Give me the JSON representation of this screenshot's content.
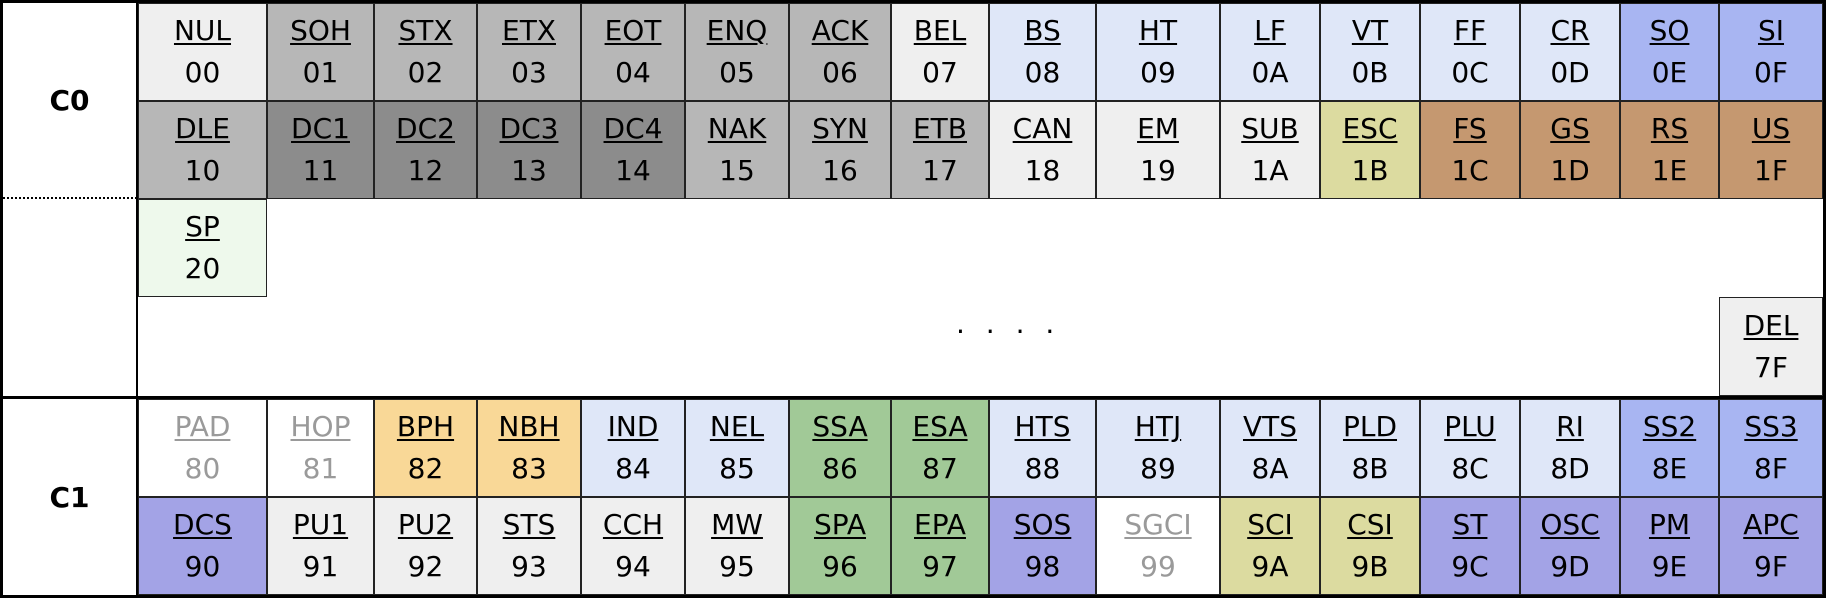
{
  "row_labels": {
    "c0": "C0",
    "c1": "C1"
  },
  "ellipsis": ". . . .",
  "colors": {
    "white": "#ffffff",
    "light_grey": "#efefef",
    "grey": "#b7b7b7",
    "dark_grey": "#8c8c8c",
    "light_blue": "#dfe7f8",
    "blue": "#a8b5f2",
    "purple": "#a3a3e6",
    "khaki": "#dcdba0",
    "tan": "#c59870",
    "orange": "#f9d897",
    "green": "#a1c997",
    "pale_green": "#eef9ec"
  },
  "c0_rows": [
    [
      {
        "abbr": "NUL",
        "code": "00",
        "color": "light_grey"
      },
      {
        "abbr": "SOH",
        "code": "01",
        "color": "grey"
      },
      {
        "abbr": "STX",
        "code": "02",
        "color": "grey"
      },
      {
        "abbr": "ETX",
        "code": "03",
        "color": "grey"
      },
      {
        "abbr": "EOT",
        "code": "04",
        "color": "grey"
      },
      {
        "abbr": "ENQ",
        "code": "05",
        "color": "grey"
      },
      {
        "abbr": "ACK",
        "code": "06",
        "color": "grey"
      },
      {
        "abbr": "BEL",
        "code": "07",
        "color": "light_grey"
      },
      {
        "abbr": "BS",
        "code": "08",
        "color": "light_blue"
      },
      {
        "abbr": "HT",
        "code": "09",
        "color": "light_blue"
      },
      {
        "abbr": "LF",
        "code": "0A",
        "color": "light_blue"
      },
      {
        "abbr": "VT",
        "code": "0B",
        "color": "light_blue"
      },
      {
        "abbr": "FF",
        "code": "0C",
        "color": "light_blue"
      },
      {
        "abbr": "CR",
        "code": "0D",
        "color": "light_blue"
      },
      {
        "abbr": "SO",
        "code": "0E",
        "color": "blue"
      },
      {
        "abbr": "SI",
        "code": "0F",
        "color": "blue"
      }
    ],
    [
      {
        "abbr": "DLE",
        "code": "10",
        "color": "grey"
      },
      {
        "abbr": "DC1",
        "code": "11",
        "color": "dark_grey"
      },
      {
        "abbr": "DC2",
        "code": "12",
        "color": "dark_grey"
      },
      {
        "abbr": "DC3",
        "code": "13",
        "color": "dark_grey"
      },
      {
        "abbr": "DC4",
        "code": "14",
        "color": "dark_grey"
      },
      {
        "abbr": "NAK",
        "code": "15",
        "color": "grey"
      },
      {
        "abbr": "SYN",
        "code": "16",
        "color": "grey"
      },
      {
        "abbr": "ETB",
        "code": "17",
        "color": "grey"
      },
      {
        "abbr": "CAN",
        "code": "18",
        "color": "light_grey"
      },
      {
        "abbr": "EM",
        "code": "19",
        "color": "light_grey"
      },
      {
        "abbr": "SUB",
        "code": "1A",
        "color": "light_grey"
      },
      {
        "abbr": "ESC",
        "code": "1B",
        "color": "khaki"
      },
      {
        "abbr": "FS",
        "code": "1C",
        "color": "tan"
      },
      {
        "abbr": "GS",
        "code": "1D",
        "color": "tan"
      },
      {
        "abbr": "RS",
        "code": "1E",
        "color": "tan"
      },
      {
        "abbr": "US",
        "code": "1F",
        "color": "tan"
      }
    ]
  ],
  "sp": {
    "abbr": "SP",
    "code": "20",
    "color": "pale_green"
  },
  "del": {
    "abbr": "DEL",
    "code": "7F",
    "color": "light_grey"
  },
  "c1_rows": [
    [
      {
        "abbr": "PAD",
        "code": "80",
        "color": "white",
        "muted": true
      },
      {
        "abbr": "HOP",
        "code": "81",
        "color": "white",
        "muted": true
      },
      {
        "abbr": "BPH",
        "code": "82",
        "color": "orange"
      },
      {
        "abbr": "NBH",
        "code": "83",
        "color": "orange"
      },
      {
        "abbr": "IND",
        "code": "84",
        "color": "light_blue"
      },
      {
        "abbr": "NEL",
        "code": "85",
        "color": "light_blue"
      },
      {
        "abbr": "SSA",
        "code": "86",
        "color": "green"
      },
      {
        "abbr": "ESA",
        "code": "87",
        "color": "green"
      },
      {
        "abbr": "HTS",
        "code": "88",
        "color": "light_blue"
      },
      {
        "abbr": "HTJ",
        "code": "89",
        "color": "light_blue"
      },
      {
        "abbr": "VTS",
        "code": "8A",
        "color": "light_blue"
      },
      {
        "abbr": "PLD",
        "code": "8B",
        "color": "light_blue"
      },
      {
        "abbr": "PLU",
        "code": "8C",
        "color": "light_blue"
      },
      {
        "abbr": "RI",
        "code": "8D",
        "color": "light_blue"
      },
      {
        "abbr": "SS2",
        "code": "8E",
        "color": "blue"
      },
      {
        "abbr": "SS3",
        "code": "8F",
        "color": "blue"
      }
    ],
    [
      {
        "abbr": "DCS",
        "code": "90",
        "color": "purple"
      },
      {
        "abbr": "PU1",
        "code": "91",
        "color": "light_grey"
      },
      {
        "abbr": "PU2",
        "code": "92",
        "color": "light_grey"
      },
      {
        "abbr": "STS",
        "code": "93",
        "color": "light_grey"
      },
      {
        "abbr": "CCH",
        "code": "94",
        "color": "light_grey"
      },
      {
        "abbr": "MW",
        "code": "95",
        "color": "light_grey"
      },
      {
        "abbr": "SPA",
        "code": "96",
        "color": "green"
      },
      {
        "abbr": "EPA",
        "code": "97",
        "color": "green"
      },
      {
        "abbr": "SOS",
        "code": "98",
        "color": "purple"
      },
      {
        "abbr": "SGCI",
        "code": "99",
        "color": "white",
        "muted": true
      },
      {
        "abbr": "SCI",
        "code": "9A",
        "color": "khaki"
      },
      {
        "abbr": "CSI",
        "code": "9B",
        "color": "khaki"
      },
      {
        "abbr": "ST",
        "code": "9C",
        "color": "purple"
      },
      {
        "abbr": "OSC",
        "code": "9D",
        "color": "purple"
      },
      {
        "abbr": "PM",
        "code": "9E",
        "color": "purple"
      },
      {
        "abbr": "APC",
        "code": "9F",
        "color": "purple"
      }
    ]
  ]
}
